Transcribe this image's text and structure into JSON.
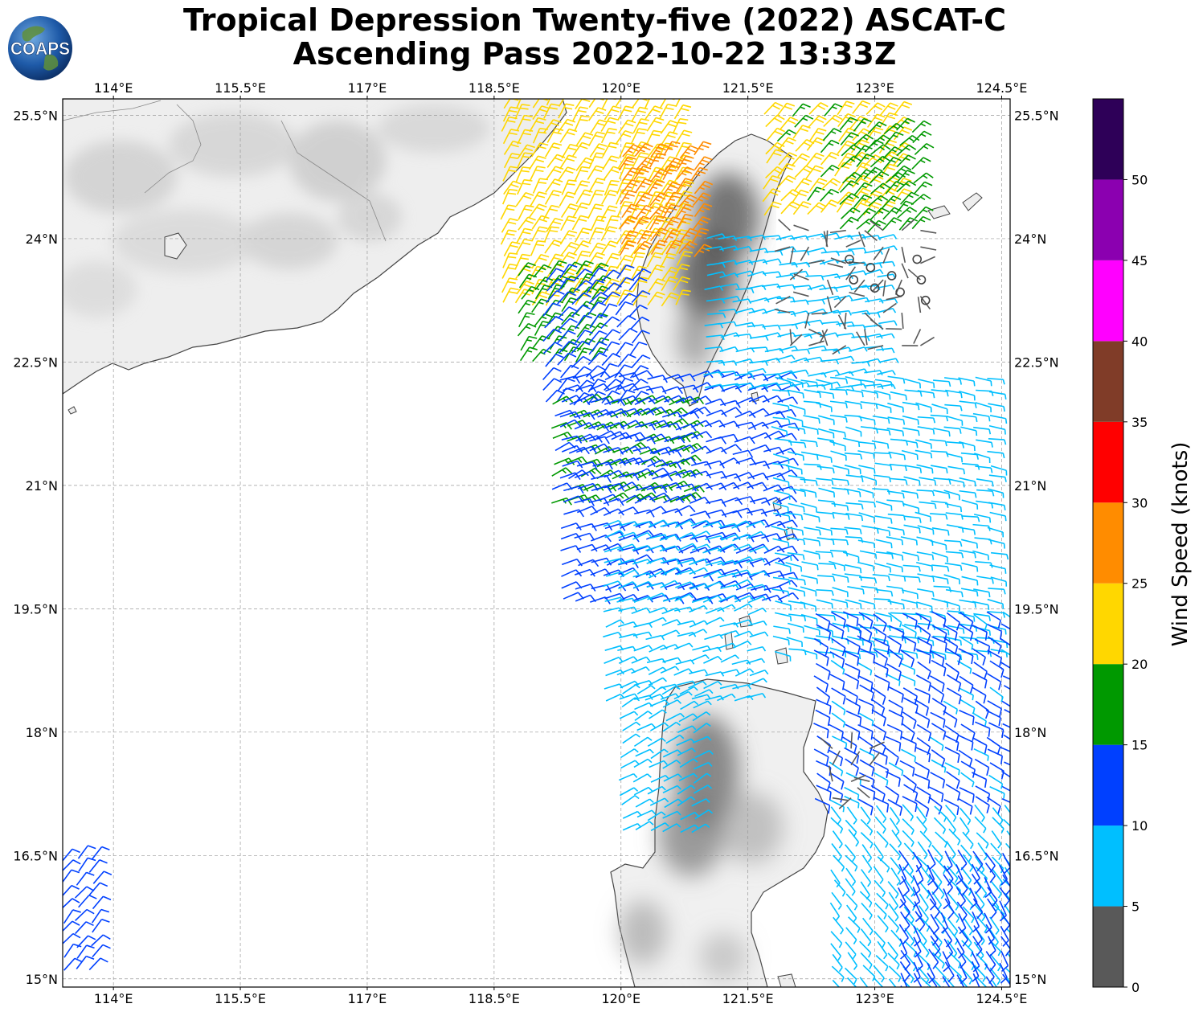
{
  "title": {
    "line1": "Tropical Depression Twenty-five (2022) ASCAT-C",
    "line2": "Ascending Pass 2022-10-22 13:33Z"
  },
  "logo": {
    "text": "COAPS",
    "ocean_color": "#1e5aa8",
    "land_color": "#5f8f3a"
  },
  "map": {
    "lon_range": [
      113.4,
      124.6
    ],
    "lat_range": [
      14.9,
      25.7
    ],
    "lon_ticks": [
      {
        "value": 114.0,
        "label": "114°E"
      },
      {
        "value": 115.5,
        "label": "115.5°E"
      },
      {
        "value": 117.0,
        "label": "117°E"
      },
      {
        "value": 118.5,
        "label": "118.5°E"
      },
      {
        "value": 120.0,
        "label": "120°E"
      },
      {
        "value": 121.5,
        "label": "121.5°E"
      },
      {
        "value": 123.0,
        "label": "123°E"
      },
      {
        "value": 124.5,
        "label": "124.5°E"
      }
    ],
    "lat_ticks": [
      {
        "value": 25.5,
        "label": "25.5°N"
      },
      {
        "value": 24.0,
        "label": "24°N"
      },
      {
        "value": 22.5,
        "label": "22.5°N"
      },
      {
        "value": 21.0,
        "label": "21°N"
      },
      {
        "value": 19.5,
        "label": "19.5°N"
      },
      {
        "value": 18.0,
        "label": "18°N"
      },
      {
        "value": 16.5,
        "label": "16.5°N"
      },
      {
        "value": 15.0,
        "label": "15°N"
      }
    ],
    "gridlines": true,
    "terrain": "grayscale elevation shading"
  },
  "colorbar": {
    "label": "Wind Speed (knots)",
    "bins": [
      {
        "from": 0,
        "to": 5,
        "color": "#595959"
      },
      {
        "from": 5,
        "to": 10,
        "color": "#00bfff"
      },
      {
        "from": 10,
        "to": 15,
        "color": "#0040ff"
      },
      {
        "from": 15,
        "to": 20,
        "color": "#009900"
      },
      {
        "from": 20,
        "to": 25,
        "color": "#ffd700"
      },
      {
        "from": 25,
        "to": 30,
        "color": "#ff8c00"
      },
      {
        "from": 30,
        "to": 35,
        "color": "#ff0000"
      },
      {
        "from": 35,
        "to": 40,
        "color": "#803c28"
      },
      {
        "from": 40,
        "to": 45,
        "color": "#ff00ff"
      },
      {
        "from": 45,
        "to": 50,
        "color": "#8b00b0"
      },
      {
        "from": 50,
        "to": 55,
        "color": "#2e0058"
      }
    ],
    "tick_labels": [
      "0",
      "5",
      "10",
      "15",
      "20",
      "25",
      "30",
      "35",
      "40",
      "45",
      "50"
    ]
  },
  "wind_regions": [
    {
      "lon": [
        118.6,
        120.8
      ],
      "lat": [
        23.2,
        25.6
      ],
      "speed": 22,
      "dir": 30
    },
    {
      "lon": [
        120.0,
        120.9
      ],
      "lat": [
        23.8,
        25.1
      ],
      "speed": 27,
      "dir": 35
    },
    {
      "lon": [
        121.7,
        123.4
      ],
      "lat": [
        24.3,
        25.6
      ],
      "speed": 21,
      "dir": 40
    },
    {
      "lon": [
        122.6,
        123.5
      ],
      "lat": [
        24.1,
        25.3
      ],
      "speed": 17,
      "dir": 45
    },
    {
      "lon": [
        118.8,
        119.8
      ],
      "lat": [
        22.5,
        23.6
      ],
      "speed": 17,
      "dir": 35
    },
    {
      "lon": [
        119.1,
        120.2
      ],
      "lat": [
        22.0,
        23.6
      ],
      "speed": 12,
      "dir": 40
    },
    {
      "lon": [
        119.2,
        120.9
      ],
      "lat": [
        20.8,
        22.0
      ],
      "speed": 16,
      "dir": 65
    },
    {
      "lon": [
        119.3,
        121.9
      ],
      "lat": [
        19.6,
        22.4
      ],
      "speed": 12,
      "dir": 70
    },
    {
      "lon": [
        121.0,
        123.2
      ],
      "lat": [
        22.2,
        24.0
      ],
      "speed": 8,
      "dir": 80
    },
    {
      "lon": [
        121.8,
        124.5
      ],
      "lat": [
        19.0,
        22.4
      ],
      "speed": 8,
      "dir": 100
    },
    {
      "lon": [
        119.8,
        121.6
      ],
      "lat": [
        18.4,
        20.5
      ],
      "speed": 8,
      "dir": 70
    },
    {
      "lon": [
        122.3,
        124.6
      ],
      "lat": [
        17.2,
        19.5
      ],
      "speed": 11,
      "dir": 120
    },
    {
      "lon": [
        120.0,
        121.0
      ],
      "lat": [
        16.8,
        18.5
      ],
      "speed": 8,
      "dir": 60
    },
    {
      "lon": [
        122.5,
        124.6
      ],
      "lat": [
        15.0,
        17.2
      ],
      "speed": 8,
      "dir": 140
    },
    {
      "lon": [
        123.3,
        124.6
      ],
      "lat": [
        14.9,
        16.6
      ],
      "speed": 13,
      "dir": 150
    },
    {
      "lon": [
        113.4,
        113.9
      ],
      "lat": [
        15.1,
        16.5
      ],
      "speed": 12,
      "dir": 40
    }
  ],
  "calm_regions": [
    {
      "lon": [
        122.0,
        123.6
      ],
      "lat": [
        22.7,
        24.1
      ],
      "speed": 3
    },
    {
      "lon": [
        122.5,
        123.0
      ],
      "lat": [
        17.2,
        17.8
      ],
      "speed": 3
    }
  ],
  "calm_circles": [
    {
      "lon": 122.7,
      "lat": 23.75
    },
    {
      "lon": 122.95,
      "lat": 23.65
    },
    {
      "lon": 123.2,
      "lat": 23.55
    },
    {
      "lon": 123.5,
      "lat": 23.75
    },
    {
      "lon": 122.75,
      "lat": 23.5
    },
    {
      "lon": 123.0,
      "lat": 23.4
    },
    {
      "lon": 123.3,
      "lat": 23.35
    },
    {
      "lon": 123.55,
      "lat": 23.5
    },
    {
      "lon": 123.6,
      "lat": 23.25
    }
  ]
}
